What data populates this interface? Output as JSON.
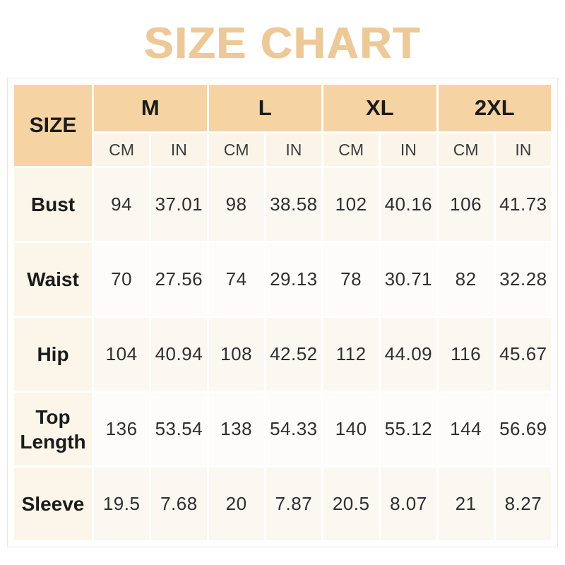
{
  "title": "SIZE CHART",
  "colors": {
    "title_text": "#edc998",
    "header_bg": "#f5d3a3",
    "subheader_bg": "#fbf4e9",
    "label_bg": "#fcf5ea",
    "cell_bg_odd": "#fbf7f1",
    "cell_bg_even": "#fdfcfa",
    "header_text": "#1b1b1b",
    "unit_text": "#3c3c3c",
    "value_text": "#2f2f2f",
    "frame_border": "#ece7e0"
  },
  "chart_data": {
    "type": "table",
    "title": "SIZE CHART",
    "corner_label": "SIZE",
    "size_columns": [
      "M",
      "L",
      "XL",
      "2XL"
    ],
    "unit_columns": [
      "CM",
      "IN"
    ],
    "rows": [
      {
        "label": "Bust",
        "values": [
          "94",
          "37.01",
          "98",
          "38.58",
          "102",
          "40.16",
          "106",
          "41.73"
        ]
      },
      {
        "label": "Waist",
        "values": [
          "70",
          "27.56",
          "74",
          "29.13",
          "78",
          "30.71",
          "82",
          "32.28"
        ]
      },
      {
        "label": "Hip",
        "values": [
          "104",
          "40.94",
          "108",
          "42.52",
          "112",
          "44.09",
          "116",
          "45.67"
        ]
      },
      {
        "label": "Top Length",
        "values": [
          "136",
          "53.54",
          "138",
          "54.33",
          "140",
          "55.12",
          "144",
          "56.69"
        ]
      },
      {
        "label": "Sleeve",
        "values": [
          "19.5",
          "7.68",
          "20",
          "7.87",
          "20.5",
          "8.07",
          "21",
          "8.27"
        ]
      }
    ]
  }
}
